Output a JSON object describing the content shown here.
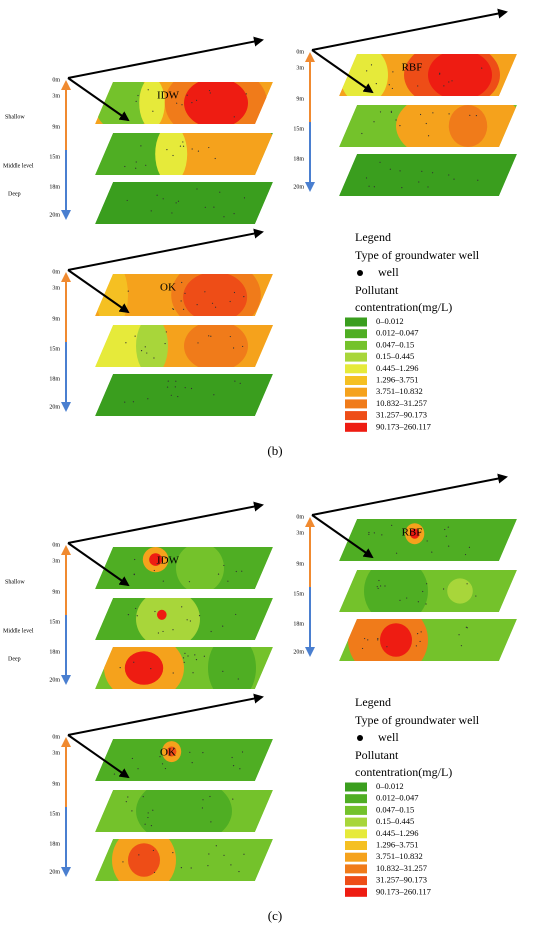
{
  "panels": [
    {
      "label": "(b)",
      "maps": [
        {
          "name": "IDW",
          "depths": [
            "0m",
            "3m",
            "9m",
            "15m",
            "18m",
            "20m"
          ],
          "zones": [
            "Shallow",
            "Middle level",
            "Deep"
          ]
        },
        {
          "name": "RBF",
          "depths": [
            "0m",
            "3m",
            "9m",
            "15m",
            "18m",
            "20m"
          ]
        },
        {
          "name": "OK",
          "depths": [
            "0m",
            "3m",
            "9m",
            "15m",
            "18m",
            "20m"
          ]
        }
      ],
      "legend": {
        "title": "Legend",
        "well_type": "Type of groundwater well",
        "well": "well",
        "conc_title": "Pollutant",
        "conc_unit": "contentration(mg/L)",
        "classes": [
          "0–0.012",
          "0.012–0.047",
          "0.047–0.15",
          "0.15–0.445",
          "0.445–1.296",
          "1.296–3.751",
          "3.751–10.832",
          "10.832–31.257",
          "31.257–90.173",
          "90.173–260.117"
        ]
      }
    },
    {
      "label": "(c)",
      "maps": [
        {
          "name": "IDW",
          "depths": [
            "0m",
            "3m",
            "9m",
            "15m",
            "18m",
            "20m"
          ],
          "zones": [
            "Shallow",
            "Middle level",
            "Deep"
          ]
        },
        {
          "name": "RBF",
          "depths": [
            "0m",
            "3m",
            "9m",
            "15m",
            "18m",
            "20m"
          ]
        },
        {
          "name": "OK",
          "depths": [
            "0m",
            "3m",
            "9m",
            "15m",
            "18m",
            "20m"
          ]
        }
      ],
      "legend": {
        "title": "Legend",
        "well_type": "Type of groundwater well",
        "well": "well",
        "conc_title": "Pollutant",
        "conc_unit": "contentration(mg/L)",
        "classes": [
          "0–0.012",
          "0.012–0.047",
          "0.047–0.15",
          "0.15–0.445",
          "0.445–1.296",
          "1.296–3.751",
          "3.751–10.832",
          "10.832–31.257",
          "31.257–90.173",
          "90.173–260.117"
        ]
      }
    }
  ]
}
